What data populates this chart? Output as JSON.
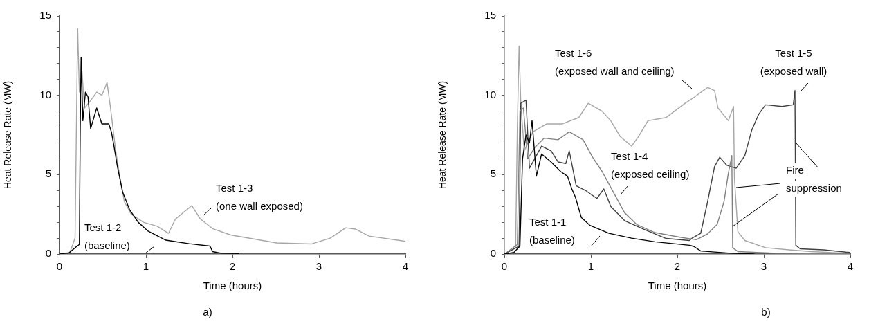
{
  "chart_data": [
    {
      "type": "line",
      "xlabel": "Time (hours)",
      "ylabel": "Heat Release Rate (MW)",
      "xlim": [
        0,
        4
      ],
      "xticks": [
        0,
        1,
        2,
        3,
        4
      ],
      "ylim": [
        0,
        15
      ],
      "yticks": [
        0,
        {
          "value": 1,
          "label": null
        },
        {
          "value": 2,
          "label": null
        },
        {
          "value": 3,
          "label": null
        },
        {
          "value": 4,
          "label": null
        },
        5,
        {
          "value": 6,
          "label": null
        },
        {
          "value": 7,
          "label": null
        },
        {
          "value": 8,
          "label": null
        },
        {
          "value": 9,
          "label": null
        },
        10,
        {
          "value": 11,
          "label": null
        },
        {
          "value": 12,
          "label": null
        },
        {
          "value": 13,
          "label": null
        },
        {
          "value": 14,
          "label": null
        },
        15
      ],
      "legend": false,
      "series": [
        {
          "name": "Test 1-2 (baseline)",
          "color": "#000000",
          "x": [
            0,
            0.11,
            0.19,
            0.23,
            0.24,
            0.25,
            0.27,
            0.3,
            0.33,
            0.36,
            0.43,
            0.49,
            0.57,
            0.6,
            0.63,
            0.67,
            0.73,
            0.81,
            0.91,
            1.02,
            1.23,
            1.5,
            1.74,
            1.77,
            1.87,
            2.08
          ],
          "values": [
            0,
            0.07,
            0.44,
            0.6,
            8,
            12.4,
            8.4,
            10.2,
            9.9,
            7.9,
            9.2,
            8.2,
            8.2,
            7.7,
            6.8,
            5.5,
            3.9,
            2.8,
            2.0,
            1.46,
            0.87,
            0.65,
            0.5,
            0.15,
            0.05,
            0.03
          ]
        },
        {
          "name": "Test 1-3 (one wall exposed)",
          "color": "#a6a6a6",
          "x": [
            0,
            0.12,
            0.18,
            0.2,
            0.21,
            0.23,
            0.26,
            0.29,
            0.35,
            0.43,
            0.49,
            0.55,
            0.59,
            0.65,
            0.7,
            0.75,
            0.83,
            0.97,
            1.13,
            1.26,
            1.34,
            1.53,
            1.63,
            1.77,
            1.98,
            2.51,
            2.91,
            3.13,
            3.31,
            3.42,
            3.58,
            3.95,
            4.0
          ],
          "values": [
            0,
            0.1,
            1,
            10,
            14.2,
            10.2,
            11.5,
            9.2,
            9.6,
            10.2,
            10.0,
            10.8,
            9.2,
            6.5,
            4.8,
            3.3,
            2.5,
            2.0,
            1.75,
            1.3,
            2.2,
            3.05,
            2.2,
            1.6,
            1.2,
            0.7,
            0.63,
            1.0,
            1.65,
            1.57,
            1.13,
            0.84,
            0.8
          ]
        }
      ],
      "annotations": [
        "a)"
      ]
    },
    {
      "type": "line",
      "xlabel": "Time (hours)",
      "ylabel": "Heat Release Rate (MW)",
      "xlim": [
        0,
        4
      ],
      "xticks": [
        0,
        1,
        2,
        3,
        4
      ],
      "ylim": [
        0,
        15
      ],
      "yticks": [
        0,
        {
          "value": 1,
          "label": null
        },
        {
          "value": 2,
          "label": null
        },
        {
          "value": 3,
          "label": null
        },
        {
          "value": 4,
          "label": null
        },
        5,
        {
          "value": 6,
          "label": null
        },
        {
          "value": 7,
          "label": null
        },
        {
          "value": 8,
          "label": null
        },
        {
          "value": 9,
          "label": null
        },
        10,
        {
          "value": 11,
          "label": null
        },
        {
          "value": 12,
          "label": null
        },
        {
          "value": 13,
          "label": null
        },
        {
          "value": 14,
          "label": null
        },
        15
      ],
      "legend": false,
      "series": [
        {
          "name": "Test 1-1 (baseline)",
          "color": "#000000",
          "x": [
            0,
            0.11,
            0.18,
            0.21,
            0.25,
            0.29,
            0.32,
            0.37,
            0.43,
            0.54,
            0.65,
            0.73,
            0.78,
            0.82,
            0.89,
            0.99,
            1.21,
            1.47,
            1.74,
            2.14,
            2.19,
            2.27,
            2.62,
            2.89
          ],
          "values": [
            0,
            0.1,
            0.5,
            6,
            7.5,
            7,
            8.4,
            4.9,
            6.3,
            5.8,
            5.2,
            4.9,
            4.1,
            3.6,
            2.3,
            1.8,
            1.3,
            1.0,
            0.77,
            0.55,
            0.48,
            0.19,
            0.05,
            0
          ]
        },
        {
          "name": "Test 1-4 (exposed ceiling)",
          "color": "#808080",
          "x": [
            0,
            0.15,
            0.18,
            0.22,
            0.27,
            0.35,
            0.46,
            0.62,
            0.75,
            0.91,
            1.02,
            1.13,
            1.26,
            1.39,
            1.53,
            1.74,
            2.03,
            2.22,
            2.35,
            2.46,
            2.54,
            2.59,
            2.63,
            2.64,
            2.7,
            3.15,
            4.0
          ],
          "values": [
            0,
            0.6,
            9,
            9.2,
            6.0,
            6.7,
            7.3,
            7.2,
            7.7,
            7.2,
            6.1,
            5.2,
            3.9,
            2.6,
            1.86,
            1.35,
            1.06,
            0.9,
            1.27,
            1.86,
            3.3,
            5.1,
            6.2,
            0.4,
            0.15,
            0.05,
            0
          ]
        },
        {
          "name": "Test 1-5 (exposed wall)",
          "color": "#404040",
          "x": [
            0,
            0.17,
            0.19,
            0.25,
            0.29,
            0.35,
            0.43,
            0.54,
            0.62,
            0.71,
            0.75,
            0.83,
            0.94,
            1.07,
            1.15,
            1.23,
            1.39,
            1.61,
            1.87,
            2.14,
            2.17,
            2.27,
            2.35,
            2.43,
            2.49,
            2.57,
            2.68,
            2.78,
            2.86,
            2.94,
            3.02,
            3.21,
            3.34,
            3.36,
            3.37,
            3.42,
            3.69,
            3.95,
            4.0
          ],
          "values": [
            0,
            0.5,
            9.5,
            9.7,
            5.4,
            6.0,
            6.8,
            6.5,
            5.8,
            5.7,
            6.5,
            4.3,
            4.0,
            3.5,
            4.1,
            3.0,
            2.1,
            1.56,
            0.98,
            0.85,
            1.0,
            1.3,
            3.3,
            5.5,
            6.1,
            5.6,
            5.4,
            6.2,
            7.8,
            8.8,
            9.4,
            9.3,
            9.4,
            10.3,
            0.55,
            0.33,
            0.26,
            0.12,
            0.1
          ]
        },
        {
          "name": "Test 1-6 (exposed wall and ceiling)",
          "color": "#a6a6a6",
          "x": [
            0,
            0.13,
            0.15,
            0.17,
            0.19,
            0.23,
            0.33,
            0.49,
            0.67,
            0.86,
            0.97,
            1.13,
            1.23,
            1.34,
            1.47,
            1.55,
            1.66,
            1.87,
            2.09,
            2.2,
            2.35,
            2.43,
            2.47,
            2.59,
            2.65,
            2.66,
            2.7,
            2.78,
            3.02,
            3.29,
            3.55,
            3.95
          ],
          "values": [
            0,
            0.4,
            8,
            13.1,
            9.5,
            6.5,
            7.7,
            8.2,
            8.2,
            8.6,
            9.5,
            9.0,
            8.4,
            7.4,
            6.8,
            7.4,
            8.4,
            8.6,
            9.5,
            9.9,
            10.5,
            10.3,
            9.2,
            8.4,
            9.3,
            4.8,
            1.4,
            0.85,
            0.4,
            0.26,
            0.15,
            0.05
          ]
        }
      ],
      "annotations": [
        {
          "text": "Fire suppression",
          "x": 3.37,
          "y": 7
        },
        "b)"
      ]
    }
  ]
}
